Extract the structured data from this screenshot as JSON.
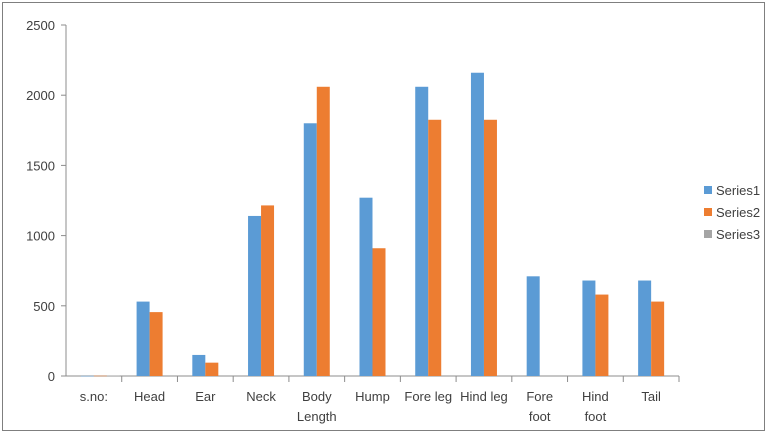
{
  "chart_data": {
    "type": "bar",
    "title": "",
    "xlabel": "",
    "ylabel": "",
    "ylim": [
      0,
      2500
    ],
    "yticks": [
      0,
      500,
      1000,
      1500,
      2000,
      2500
    ],
    "grid": false,
    "legend_position": "right",
    "categories": [
      [
        "s.no:"
      ],
      [
        "Head"
      ],
      [
        "Ear"
      ],
      [
        "Neck"
      ],
      [
        "Body",
        "Length"
      ],
      [
        "Hump"
      ],
      [
        "Fore leg"
      ],
      [
        "Hind leg"
      ],
      [
        "Fore",
        "foot"
      ],
      [
        "Hind",
        "foot"
      ],
      [
        "Tail"
      ]
    ],
    "series": [
      {
        "name": "Series1",
        "color": "#5b9bd5",
        "values": [
          1,
          530,
          150,
          1140,
          1800,
          1270,
          2060,
          2160,
          710,
          680,
          680
        ]
      },
      {
        "name": "Series2",
        "color": "#ed7d31",
        "values": [
          2,
          455,
          95,
          1215,
          2060,
          910,
          1825,
          1825,
          null,
          580,
          530
        ]
      },
      {
        "name": "Series3",
        "color": "#a5a5a5",
        "values": [
          3,
          null,
          null,
          null,
          null,
          null,
          null,
          null,
          null,
          null,
          null
        ]
      }
    ]
  }
}
